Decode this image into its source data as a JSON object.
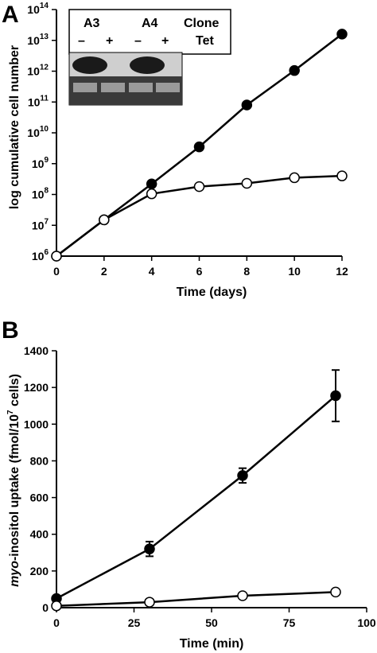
{
  "panels": [
    {
      "letter": "A",
      "title": "",
      "xlabel": "Time (days)",
      "ylabel": "log cumulative cell number"
    },
    {
      "letter": "B",
      "title": "",
      "xlabel": "Time (min)",
      "ylabel_italic": "myo",
      "ylabel_rest": "-inositol uptake (fmol/10",
      "ylabel_sup": "7",
      "ylabel_end": " cells)"
    }
  ],
  "inset": {
    "clones": [
      "A3",
      "A4"
    ],
    "clone_label": "Clone",
    "tet_label": "Tet",
    "tet_marks": [
      "–",
      "+",
      "–",
      "+"
    ]
  },
  "chart_data": [
    {
      "type": "line",
      "scale": "log",
      "x": [
        0,
        2,
        4,
        6,
        8,
        10,
        12
      ],
      "xticks": [
        "0",
        "2",
        "4",
        "6",
        "8",
        "10",
        "12"
      ],
      "xlim": [
        0,
        12
      ],
      "ylim_exp": [
        6,
        14
      ],
      "ytick_base": "10",
      "ytick_exps": [
        "6",
        "7",
        "8",
        "9",
        "10",
        "11",
        "12",
        "13",
        "14"
      ],
      "series": [
        {
          "marker": "filled",
          "color": "#000000",
          "values": [
            1000000.0,
            15000000.0,
            220000000.0,
            3500000000.0,
            80000000000.0,
            1050000000000.0,
            16000000000000.0
          ]
        },
        {
          "marker": "open",
          "color": "#ffffff",
          "values": [
            1000000.0,
            15000000.0,
            105000000.0,
            180000000.0,
            230000000.0,
            350000000.0,
            400000000.0
          ]
        }
      ],
      "grid": false,
      "legend": "none"
    },
    {
      "type": "line",
      "scale": "linear",
      "x": [
        0,
        30,
        60,
        90
      ],
      "xticks": [
        "0",
        "25",
        "50",
        "75",
        "100"
      ],
      "xtick_values": [
        0,
        25,
        50,
        75,
        100
      ],
      "xlim": [
        0,
        100
      ],
      "ylim": [
        0,
        1400
      ],
      "yticks": [
        "0",
        "200",
        "400",
        "600",
        "800",
        "1000",
        "1200",
        "1400"
      ],
      "ytick_values": [
        0,
        200,
        400,
        600,
        800,
        1000,
        1200,
        1400
      ],
      "series": [
        {
          "marker": "filled",
          "color": "#000000",
          "values": [
            50,
            320,
            720,
            1155
          ],
          "errors": [
            0,
            40,
            40,
            140
          ]
        },
        {
          "marker": "open",
          "color": "#ffffff",
          "values": [
            10,
            30,
            65,
            85
          ],
          "errors": [
            0,
            0,
            0,
            0
          ]
        }
      ],
      "grid": false,
      "legend": "none"
    }
  ]
}
